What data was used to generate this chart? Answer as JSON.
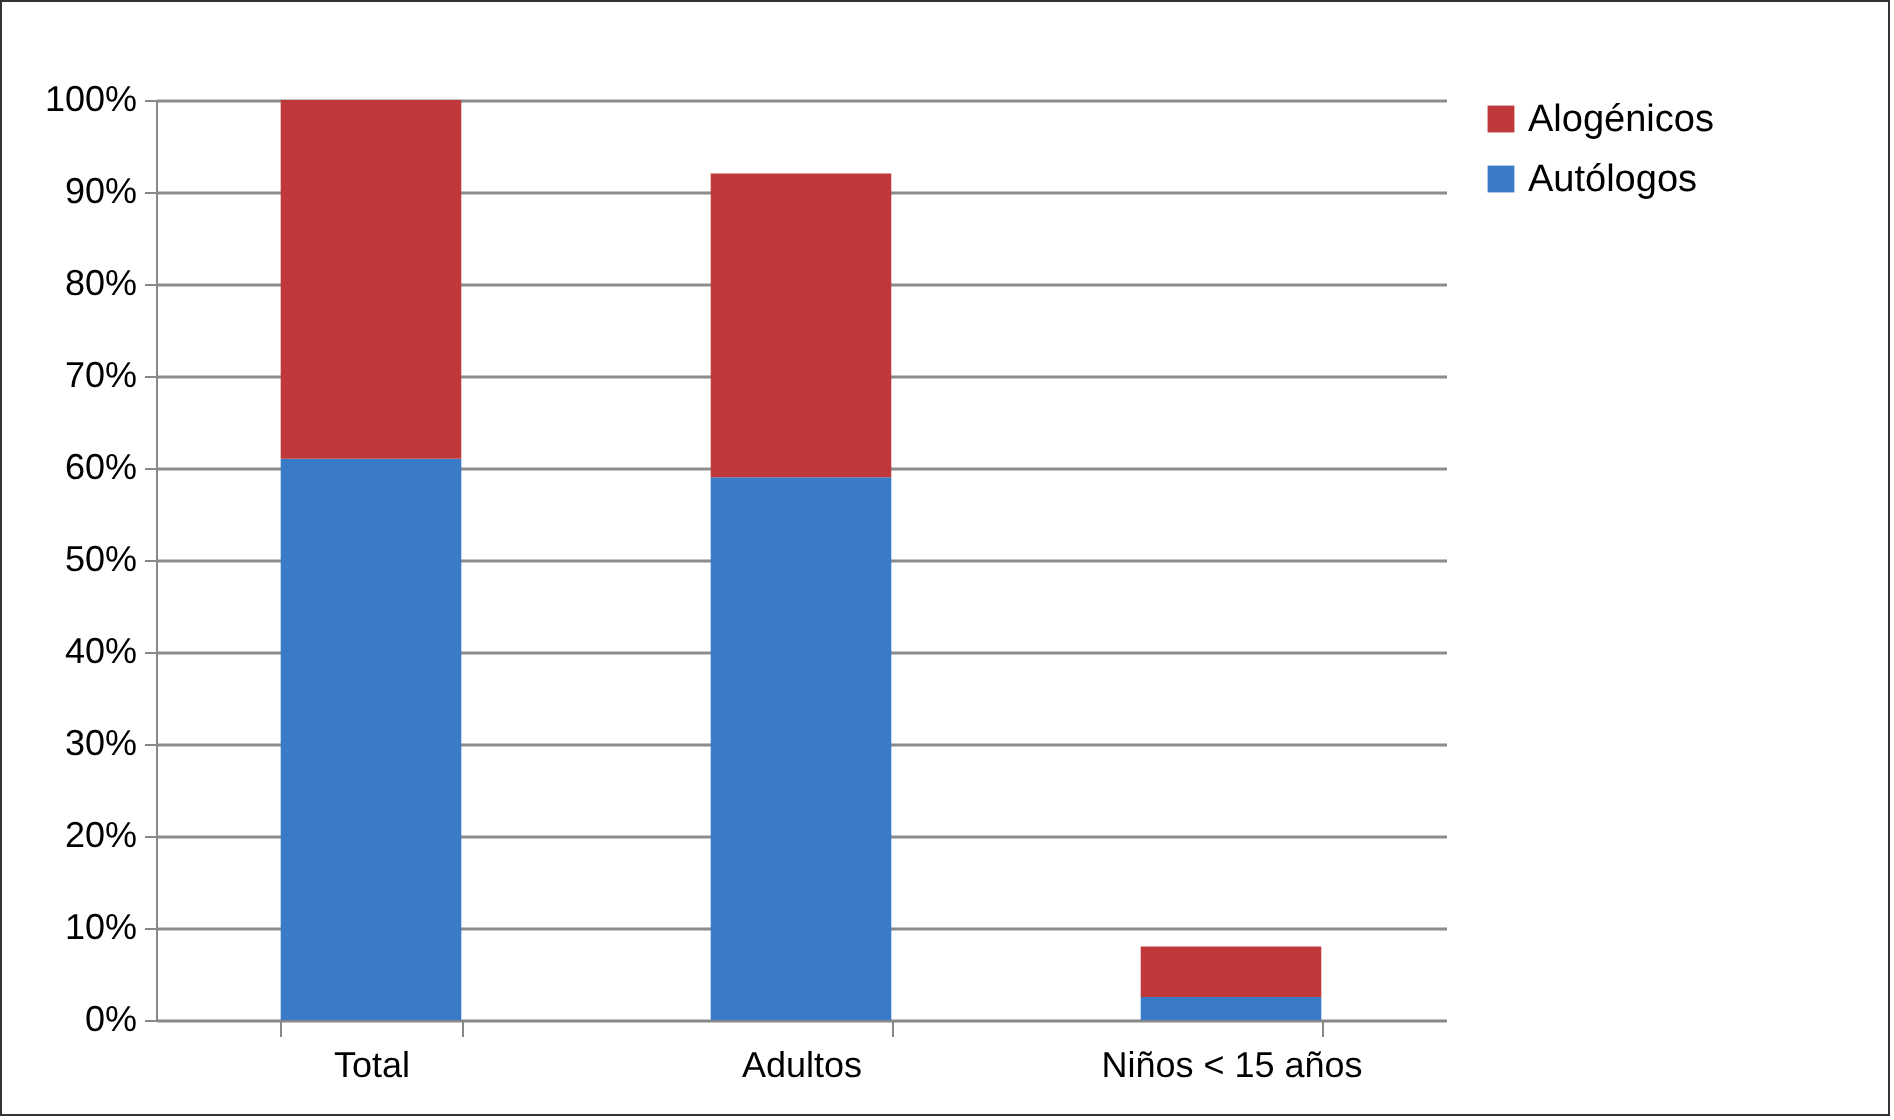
{
  "chart_data": {
    "type": "bar",
    "stacked": true,
    "categories": [
      "Total",
      "Adultos",
      "Niños < 15 años"
    ],
    "series": [
      {
        "name": "Autólogos",
        "color": "#3a7bc8",
        "values": [
          61,
          59,
          2.5
        ]
      },
      {
        "name": "Alogénicos",
        "color": "#c0393a",
        "values": [
          39,
          33,
          5.5
        ]
      }
    ],
    "ylim": [
      0,
      100
    ],
    "yticks": [
      {
        "value": 0,
        "label": "0%"
      },
      {
        "value": 10,
        "label": "10%"
      },
      {
        "value": 20,
        "label": "20%"
      },
      {
        "value": 30,
        "label": "30%"
      },
      {
        "value": 40,
        "label": "40%"
      },
      {
        "value": 50,
        "label": "50%"
      },
      {
        "value": 60,
        "label": "60%"
      },
      {
        "value": 70,
        "label": "70%"
      },
      {
        "value": 80,
        "label": "80%"
      },
      {
        "value": 90,
        "label": "90%"
      },
      {
        "value": 100,
        "label": "100%"
      }
    ],
    "grid": "y",
    "legend": "right"
  }
}
